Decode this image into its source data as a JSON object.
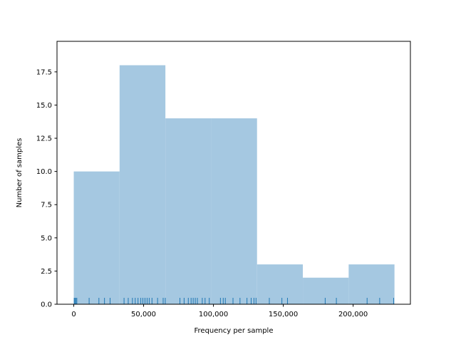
{
  "chart_data": {
    "type": "bar",
    "subtype": "histogram-with-rug",
    "title": "",
    "xlabel": "Frequency per sample",
    "ylabel": "Number of samples",
    "xlim": [
      -12000,
      241000
    ],
    "ylim": [
      0,
      19.8
    ],
    "grid": false,
    "bins": [
      {
        "start": 0,
        "end": 32800,
        "count": 10
      },
      {
        "start": 32800,
        "end": 65600,
        "count": 18
      },
      {
        "start": 65600,
        "end": 98400,
        "count": 14
      },
      {
        "start": 98400,
        "end": 131200,
        "count": 14
      },
      {
        "start": 131200,
        "end": 164000,
        "count": 3
      },
      {
        "start": 164000,
        "end": 196800,
        "count": 2
      },
      {
        "start": 196800,
        "end": 229600,
        "count": 3
      }
    ],
    "rug": [
      300,
      800,
      1500,
      2200,
      11000,
      18000,
      22000,
      26000,
      36000,
      39000,
      42000,
      44000,
      46000,
      48000,
      49500,
      51000,
      52500,
      54000,
      56000,
      60000,
      64000,
      65500,
      76000,
      79000,
      82000,
      84000,
      85500,
      87000,
      88500,
      92000,
      94000,
      97000,
      105000,
      107000,
      108500,
      114000,
      119000,
      124000,
      127000,
      129000,
      130500,
      140000,
      149000,
      153000,
      180000,
      188000,
      210000,
      219000,
      229000
    ],
    "xticks": [
      {
        "value": 0,
        "label": "0"
      },
      {
        "value": 50000,
        "label": "50,000"
      },
      {
        "value": 100000,
        "label": "100,000"
      },
      {
        "value": 150000,
        "label": "150,000"
      },
      {
        "value": 200000,
        "label": "200,000"
      }
    ],
    "yticks": [
      {
        "value": 0,
        "label": "0.0"
      },
      {
        "value": 2.5,
        "label": "2.5"
      },
      {
        "value": 5,
        "label": "5.0"
      },
      {
        "value": 7.5,
        "label": "7.5"
      },
      {
        "value": 10,
        "label": "10.0"
      },
      {
        "value": 12.5,
        "label": "12.5"
      },
      {
        "value": 15,
        "label": "15.0"
      },
      {
        "value": 17.5,
        "label": "17.5"
      }
    ],
    "colors": {
      "bar": "#a5c8e1",
      "rug": "#1f77b4",
      "axes": "#000000"
    }
  }
}
